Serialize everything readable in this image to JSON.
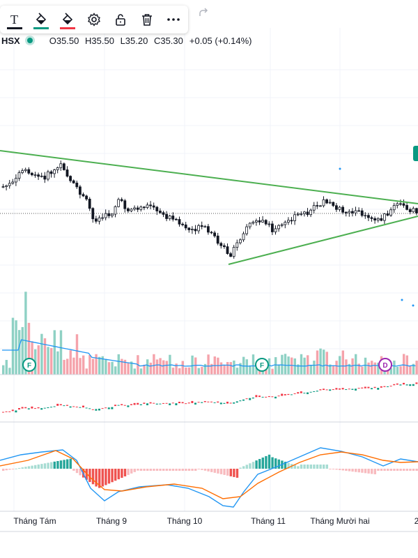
{
  "toolbar": {
    "items": [
      {
        "name": "text-tool-icon"
      },
      {
        "name": "fill-color-icon",
        "accent": "#089981"
      },
      {
        "name": "line-color-icon",
        "accent": "#f23645"
      },
      {
        "name": "settings-icon"
      },
      {
        "name": "lock-icon"
      },
      {
        "name": "delete-icon"
      },
      {
        "name": "more-options-icon",
        "label": "•••"
      }
    ],
    "text_icon_glyph": "T",
    "redo_icon": "redo-icon"
  },
  "legend": {
    "symbol": "HSX",
    "status_color": "#089981",
    "open": "O35.50",
    "high": "H35.50",
    "low": "L35.20",
    "close": "C35.30",
    "change": "+0.05 (+0.14%)"
  },
  "x_axis": {
    "labels": [
      "Tháng Tám",
      "Tháng 9",
      "Tháng 10",
      "Tháng 11",
      "Tháng Mười hai",
      "2"
    ]
  },
  "events": [
    {
      "label": "F",
      "color": "#089981"
    },
    {
      "label": "F",
      "color": "#089981"
    },
    {
      "label": "D",
      "color": "#9c27b0"
    }
  ],
  "colors": {
    "up": "#089981",
    "down": "#f23645",
    "trendline": "#4caf50",
    "volume_ma": "#2196f3",
    "macd_line": "#2196f3",
    "signal_line": "#ff6d00"
  }
}
